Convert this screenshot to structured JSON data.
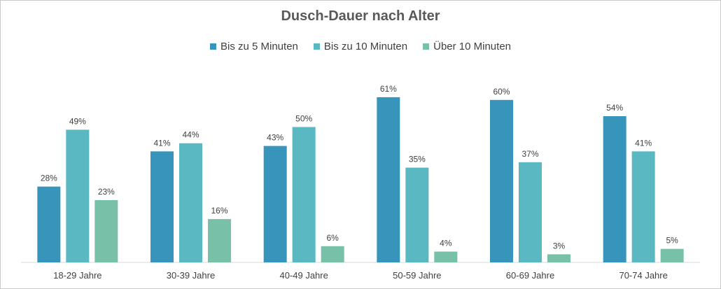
{
  "chart_data": {
    "type": "bar",
    "title": "Dusch-Dauer nach Alter",
    "categories": [
      "18-29 Jahre",
      "30-39 Jahre",
      "40-49 Jahre",
      "50-59 Jahre",
      "60-69 Jahre",
      "70-74 Jahre"
    ],
    "series": [
      {
        "name": "Bis zu 5 Minuten",
        "color": "#3795bc",
        "values": [
          28,
          41,
          43,
          61,
          60,
          54
        ]
      },
      {
        "name": "Bis zu 10 Minuten",
        "color": "#5ab8c2",
        "values": [
          49,
          44,
          50,
          35,
          37,
          41
        ]
      },
      {
        "name": "Über 10 Minuten",
        "color": "#79c0a8",
        "values": [
          23,
          16,
          6,
          4,
          3,
          5
        ]
      }
    ],
    "value_suffix": "%",
    "ylim": [
      0,
      70
    ],
    "grid": false,
    "legend_position": "top"
  }
}
